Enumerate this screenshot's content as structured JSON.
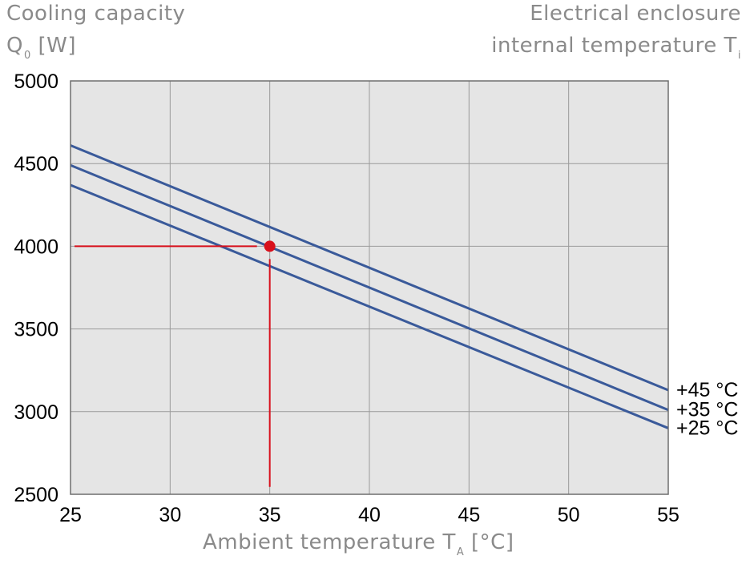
{
  "header": {
    "ylabel_main": "Cooling capacity",
    "ylabel_sym": "Q",
    "ylabel_sub": "0",
    "ylabel_unit": " [W]",
    "tlabel_line1": "Electrical enclosure",
    "tlabel_main": "internal temperature T",
    "tlabel_sub": "i"
  },
  "xaxis": {
    "label_main": "Ambient temperature T",
    "label_sub": "A",
    "label_unit": " [°C]"
  },
  "chart_data": {
    "type": "line",
    "xlim": [
      25,
      55
    ],
    "ylim": [
      2500,
      5000
    ],
    "xticks": [
      25,
      30,
      35,
      40,
      45,
      50,
      55
    ],
    "yticks": [
      2500,
      3000,
      3500,
      4000,
      4500,
      5000
    ],
    "grid": true,
    "series": [
      {
        "name": "+45 °C",
        "x": [
          25,
          55
        ],
        "y": [
          4610,
          3130
        ]
      },
      {
        "name": "+35 °C",
        "x": [
          25,
          55
        ],
        "y": [
          4490,
          3010
        ]
      },
      {
        "name": "+25 °C",
        "x": [
          25,
          55
        ],
        "y": [
          4370,
          2900
        ]
      }
    ],
    "annotation": {
      "point": {
        "x": 35,
        "y": 4000
      },
      "hline_from_x": 25,
      "vline_to_y": 2530
    },
    "colors": {
      "series": "#3a5a9a",
      "annotation": "#d8101c",
      "plot_bg": "#e5e5e5",
      "grid": "#9a9a9a"
    }
  }
}
